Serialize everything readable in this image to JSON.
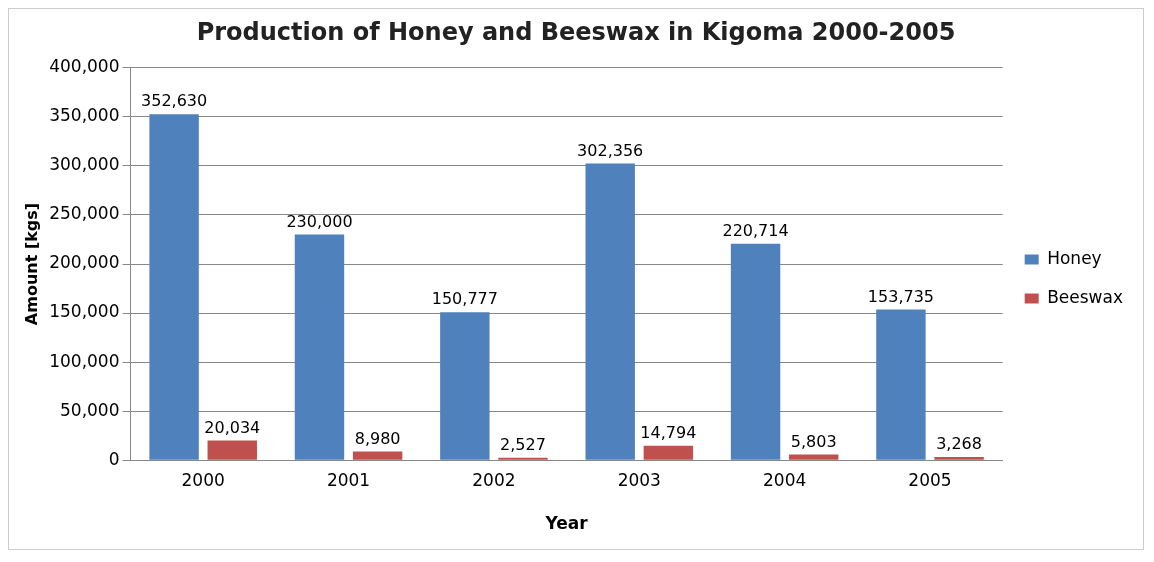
{
  "chart_data": {
    "type": "bar",
    "title": "Production of Honey and Beeswax in Kigoma 2000-2005",
    "xlabel": "Year",
    "ylabel": "Amount [kgs]",
    "categories": [
      "2000",
      "2001",
      "2002",
      "2003",
      "2004",
      "2005"
    ],
    "series": [
      {
        "name": "Honey",
        "color": "#4f81bd",
        "values": [
          352630,
          230000,
          150777,
          302356,
          220714,
          153735
        ],
        "value_labels": [
          "352,630",
          "230,000",
          "150,777",
          "302,356",
          "220,714",
          "153,735"
        ]
      },
      {
        "name": "Beeswax",
        "color": "#c0504d",
        "values": [
          20034,
          8980,
          2527,
          14794,
          5803,
          3268
        ],
        "value_labels": [
          "20,034",
          "8,980",
          "2,527",
          "14,794",
          "5,803",
          "3,268"
        ]
      }
    ],
    "ylim": [
      0,
      400000
    ],
    "yticks": [
      {
        "value": 0,
        "label": "0"
      },
      {
        "value": 50000,
        "label": "50,000"
      },
      {
        "value": 100000,
        "label": "100,000"
      },
      {
        "value": 150000,
        "label": "150,000"
      },
      {
        "value": 200000,
        "label": "200,000"
      },
      {
        "value": 250000,
        "label": "250,000"
      },
      {
        "value": 300000,
        "label": "300,000"
      },
      {
        "value": 350000,
        "label": "350,000"
      },
      {
        "value": 400000,
        "label": "400,000"
      }
    ],
    "grid": "y",
    "legend": "right"
  }
}
